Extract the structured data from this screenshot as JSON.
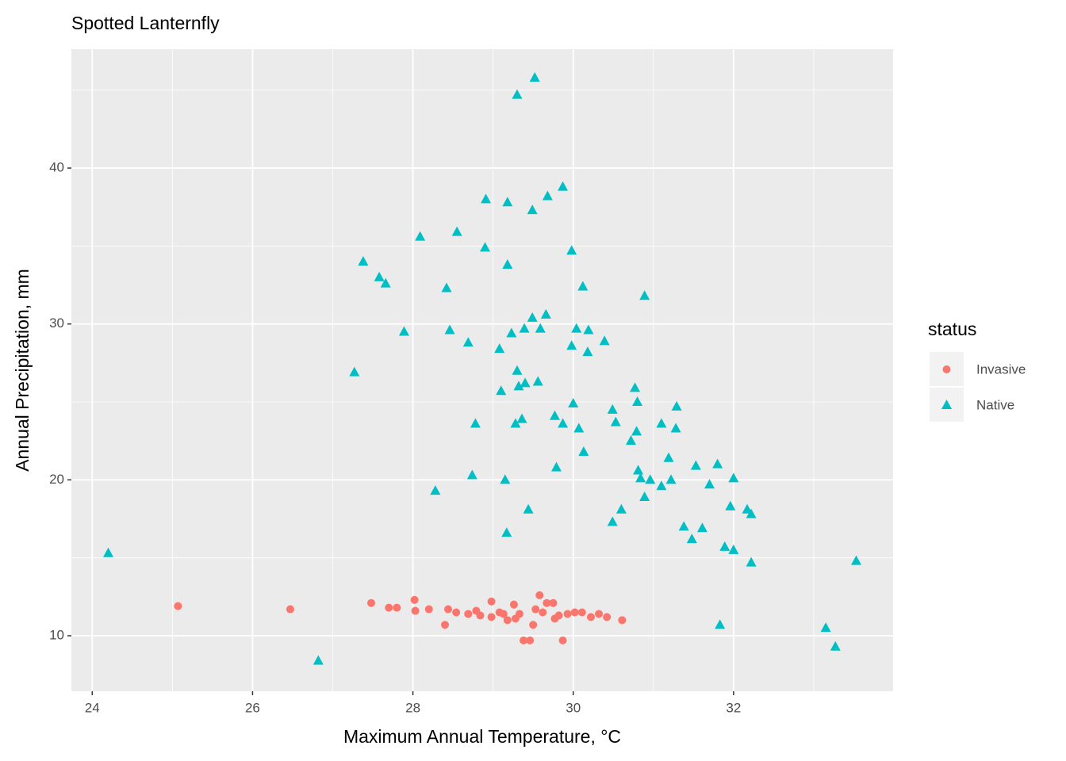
{
  "chart_data": {
    "type": "scatter",
    "title": "Spotted Lanternfly",
    "x_label": "Maximum Annual Temperature, °C",
    "y_label": "Annual Precipitation, mm",
    "legend_title": "status",
    "legend_position": "right",
    "grid": true,
    "xlim": [
      23.74,
      33.99
    ],
    "ylim": [
      6.44,
      47.63
    ],
    "xticks": [
      24,
      26,
      28,
      30,
      32
    ],
    "yticks": [
      10,
      20,
      30,
      40
    ],
    "xminor": [
      25,
      27,
      29,
      31,
      33
    ],
    "yminor": [
      15,
      25,
      35,
      45
    ],
    "series": [
      {
        "name": "Invasive",
        "color": "#F8766D",
        "marker": "circle",
        "x": [
          25.07,
          26.47,
          27.48,
          27.7,
          27.8,
          28.02,
          28.03,
          28.2,
          28.4,
          28.44,
          28.54,
          28.69,
          28.84,
          28.98,
          28.98,
          29.13,
          29.26,
          29.28,
          29.38,
          29.46,
          29.5,
          29.58,
          29.62,
          29.67,
          29.75,
          29.77,
          29.87,
          29.93,
          30.02,
          30.11,
          30.22,
          30.32,
          30.42,
          30.61,
          28.79,
          29.08,
          29.33,
          29.53,
          29.82,
          29.18
        ],
        "values": [
          11.9,
          11.7,
          12.1,
          11.8,
          11.8,
          12.3,
          11.6,
          11.7,
          10.7,
          11.7,
          11.5,
          11.4,
          11.3,
          12.2,
          11.2,
          11.4,
          12.0,
          11.1,
          9.7,
          9.7,
          10.7,
          12.6,
          11.5,
          12.1,
          12.1,
          11.1,
          9.7,
          11.4,
          11.5,
          11.5,
          11.2,
          11.4,
          11.2,
          11.0,
          11.6,
          11.5,
          11.4,
          11.7,
          11.3,
          11.0
        ]
      },
      {
        "name": "Native",
        "color": "#00BFC4",
        "marker": "triangle",
        "x": [
          24.2,
          26.82,
          27.27,
          27.38,
          27.58,
          27.66,
          27.89,
          28.09,
          28.28,
          28.42,
          28.46,
          28.55,
          28.69,
          28.74,
          28.78,
          28.9,
          28.91,
          29.08,
          29.1,
          29.15,
          29.17,
          29.18,
          29.18,
          29.23,
          29.28,
          29.3,
          29.3,
          29.32,
          29.36,
          29.39,
          29.4,
          29.44,
          29.49,
          29.52,
          29.49,
          29.56,
          29.59,
          29.66,
          29.68,
          29.79,
          29.77,
          29.87,
          29.87,
          29.98,
          29.98,
          30.0,
          30.07,
          30.04,
          30.13,
          30.12,
          30.19,
          30.18,
          30.39,
          30.49,
          30.49,
          30.53,
          30.6,
          30.72,
          30.77,
          30.8,
          30.79,
          30.81,
          30.84,
          30.89,
          30.89,
          30.96,
          31.1,
          31.1,
          31.19,
          31.22,
          31.28,
          31.29,
          31.38,
          31.48,
          31.53,
          31.61,
          31.7,
          31.8,
          31.83,
          31.89,
          31.96,
          32.0,
          32.0,
          32.17,
          32.22,
          32.22,
          33.15,
          33.27,
          33.53
        ],
        "values": [
          15.3,
          8.4,
          26.9,
          34.0,
          33.0,
          32.6,
          29.5,
          35.6,
          19.3,
          32.3,
          29.6,
          35.9,
          28.8,
          20.3,
          23.6,
          34.9,
          38.0,
          28.4,
          25.7,
          20.0,
          16.6,
          37.8,
          33.8,
          29.4,
          23.6,
          27.0,
          44.7,
          26.0,
          23.9,
          29.7,
          26.2,
          18.1,
          30.4,
          45.8,
          37.3,
          26.3,
          29.7,
          30.6,
          38.2,
          20.8,
          24.1,
          23.6,
          38.8,
          34.7,
          28.6,
          24.9,
          23.3,
          29.7,
          21.8,
          32.4,
          29.6,
          28.2,
          28.9,
          17.3,
          24.5,
          23.7,
          18.1,
          22.5,
          25.9,
          25.0,
          23.1,
          20.6,
          20.1,
          18.9,
          31.8,
          20.0,
          23.6,
          19.6,
          21.4,
          20.0,
          23.3,
          24.7,
          17.0,
          16.2,
          20.9,
          16.9,
          19.7,
          21.0,
          10.7,
          15.7,
          18.3,
          20.1,
          15.5,
          18.1,
          14.7,
          17.8,
          10.5,
          9.3,
          14.8
        ]
      }
    ]
  }
}
